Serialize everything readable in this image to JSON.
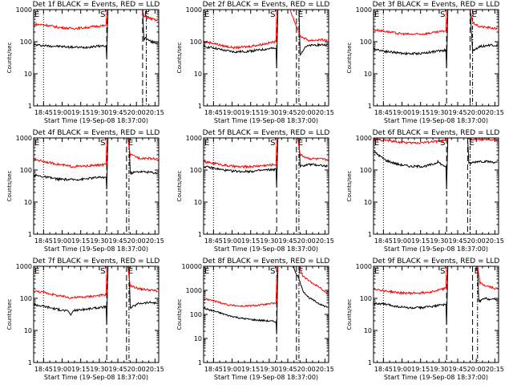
{
  "figure": {
    "xaxis_title": "Start Time (19-Sep-08 18:37:00)",
    "ylabel": "Counts/sec",
    "x_ticks": [
      "18:45",
      "19:00",
      "19:15",
      "19:30",
      "19:45",
      "20:00",
      "20:15"
    ],
    "marker_labels": {
      "eclipse_start": "E",
      "saa": "S",
      "eclipse_end": "E"
    },
    "colors": {
      "events": "#000000",
      "lld": "#ff0000"
    }
  },
  "chart_data": [
    {
      "type": "line",
      "title": "Det 1f BLACK = Events, RED = LLD",
      "x_range_min": [
        0,
        101
      ],
      "yscale": "log",
      "ylim": [
        1,
        1000
      ],
      "y_ticks": [
        "1",
        "10",
        "100",
        "1000"
      ],
      "markers_min": {
        "dotted": 8,
        "dashed1": 59,
        "dashed2": 88,
        "dotdash": 91
      },
      "series": [
        {
          "name": "Events",
          "x": [
            0,
            10,
            20,
            30,
            40,
            50,
            58.5,
            59,
            60,
            70,
            75,
            80,
            88,
            89,
            90,
            95,
            100
          ],
          "y": [
            80,
            75,
            72,
            68,
            66,
            72,
            75,
            30,
            1000,
            1000,
            1000,
            1000,
            1000,
            110,
            130,
            100,
            90
          ]
        },
        {
          "name": "LLD",
          "x": [
            0,
            10,
            20,
            30,
            40,
            50,
            58.5,
            59,
            60,
            70,
            80,
            88,
            89,
            90,
            95,
            100
          ],
          "y": [
            350,
            330,
            280,
            260,
            270,
            300,
            320,
            1000,
            1000,
            1000,
            1000,
            1000,
            600,
            600,
            520,
            450
          ]
        }
      ]
    },
    {
      "type": "line",
      "title": "Det 2f BLACK = Events, RED = LLD",
      "x_range_min": [
        0,
        101
      ],
      "yscale": "log",
      "ylim": [
        1,
        1000
      ],
      "y_ticks": [
        "1",
        "10",
        "100",
        "1000"
      ],
      "markers_min": {
        "dotted": 8,
        "dashed1": 59,
        "dashed2": 75,
        "dotdash": 77
      },
      "series": [
        {
          "name": "Events",
          "x": [
            0,
            8,
            15,
            25,
            35,
            45,
            55,
            58.5,
            59,
            60,
            70,
            77,
            78,
            82,
            90,
            100
          ],
          "y": [
            70,
            65,
            55,
            48,
            50,
            55,
            62,
            60,
            15,
            1000,
            1000,
            1000,
            40,
            70,
            80,
            80
          ]
        },
        {
          "name": "LLD",
          "x": [
            0,
            8,
            15,
            25,
            35,
            45,
            55,
            58.5,
            59,
            60,
            70,
            75,
            78,
            85,
            95,
            100
          ],
          "y": [
            100,
            90,
            75,
            65,
            70,
            80,
            95,
            100,
            1000,
            1000,
            1000,
            300,
            150,
            110,
            115,
            110
          ]
        }
      ]
    },
    {
      "type": "line",
      "title": "Det 3f BLACK = Events, RED = LLD",
      "x_range_min": [
        0,
        101
      ],
      "yscale": "log",
      "ylim": [
        1,
        1000
      ],
      "y_ticks": [
        "1",
        "10",
        "100",
        "1000"
      ],
      "markers_min": {
        "dotted": 8,
        "dashed1": 59,
        "dashed2": 78,
        "dotdash": 80
      },
      "series": [
        {
          "name": "Events",
          "x": [
            0,
            10,
            20,
            30,
            40,
            50,
            58.5,
            59,
            60,
            70,
            78,
            80,
            85,
            95,
            100
          ],
          "y": [
            60,
            50,
            45,
            42,
            44,
            50,
            55,
            15,
            1000,
            1000,
            1000,
            50,
            70,
            80,
            75
          ]
        },
        {
          "name": "LLD",
          "x": [
            0,
            10,
            20,
            30,
            40,
            50,
            58.5,
            59,
            60,
            70,
            78,
            80,
            85,
            95,
            100
          ],
          "y": [
            240,
            210,
            180,
            170,
            175,
            195,
            220,
            1000,
            1000,
            1000,
            1000,
            400,
            300,
            270,
            250
          ]
        }
      ]
    },
    {
      "type": "line",
      "title": "Det 4f BLACK = Events, RED = LLD",
      "x_range_min": [
        0,
        101
      ],
      "yscale": "log",
      "ylim": [
        1,
        1000
      ],
      "y_ticks": [
        "1",
        "10",
        "100",
        "1000"
      ],
      "markers_min": {
        "dotted": 8,
        "dashed1": 59,
        "dashed2": 75,
        "dotdash": 77
      },
      "series": [
        {
          "name": "Events",
          "x": [
            0,
            10,
            20,
            30,
            40,
            50,
            58.5,
            59,
            60,
            70,
            77,
            78,
            85,
            95,
            100
          ],
          "y": [
            70,
            60,
            52,
            50,
            52,
            58,
            60,
            25,
            1000,
            1000,
            1000,
            80,
            90,
            85,
            80
          ]
        },
        {
          "name": "LLD",
          "x": [
            0,
            10,
            20,
            30,
            40,
            50,
            58.5,
            59,
            60,
            70,
            76,
            78,
            85,
            95,
            100
          ],
          "y": [
            220,
            180,
            150,
            130,
            130,
            140,
            150,
            1000,
            1000,
            1000,
            1000,
            300,
            240,
            230,
            220
          ]
        }
      ]
    },
    {
      "type": "line",
      "title": "Det 5f BLACK = Events, RED = LLD",
      "x_range_min": [
        0,
        101
      ],
      "yscale": "log",
      "ylim": [
        1,
        1000
      ],
      "y_ticks": [
        "1",
        "10",
        "100",
        "1000"
      ],
      "markers_min": {
        "dotted": 8,
        "dashed1": 59,
        "dashed2": 75,
        "dotdash": 77
      },
      "series": [
        {
          "name": "Events",
          "x": [
            0,
            10,
            20,
            30,
            40,
            50,
            58.5,
            59,
            60,
            70,
            77,
            78,
            85,
            95,
            100
          ],
          "y": [
            130,
            110,
            95,
            90,
            92,
            100,
            105,
            30,
            1000,
            1000,
            1000,
            130,
            150,
            140,
            130
          ]
        },
        {
          "name": "LLD",
          "x": [
            0,
            10,
            20,
            30,
            40,
            50,
            58.5,
            59,
            60,
            70,
            76,
            78,
            85,
            95,
            100
          ],
          "y": [
            180,
            160,
            135,
            125,
            130,
            140,
            150,
            1000,
            1000,
            1000,
            1000,
            300,
            230,
            220,
            210
          ]
        }
      ]
    },
    {
      "type": "line",
      "title": "Det 6f BLACK = Events, RED = LLD",
      "x_range_min": [
        0,
        101
      ],
      "yscale": "log",
      "ylim": [
        1,
        1000
      ],
      "y_ticks": [
        "1",
        "10",
        "100",
        "1000"
      ],
      "markers_min": {
        "dotted": 8,
        "dashed1": 59,
        "dashed2": 76,
        "dotdash": 78
      },
      "series": [
        {
          "name": "Events",
          "x": [
            0,
            10,
            20,
            30,
            40,
            48,
            52,
            56,
            58.5,
            59,
            60,
            70,
            76,
            77,
            85,
            95,
            100
          ],
          "y": [
            380,
            200,
            150,
            130,
            130,
            150,
            180,
            140,
            130,
            25,
            1000,
            1000,
            1000,
            160,
            190,
            180,
            170
          ]
        },
        {
          "name": "LLD",
          "x": [
            0,
            10,
            20,
            30,
            40,
            50,
            58.5,
            59,
            60,
            70,
            76,
            77,
            85,
            95,
            100
          ],
          "y": [
            900,
            850,
            750,
            700,
            720,
            780,
            820,
            1000,
            1000,
            1000,
            1000,
            900,
            900,
            880,
            850
          ]
        }
      ]
    },
    {
      "type": "line",
      "title": "Det 7f BLACK = Events, RED = LLD",
      "x_range_min": [
        0,
        101
      ],
      "yscale": "log",
      "ylim": [
        1,
        1000
      ],
      "y_ticks": [
        "1",
        "10",
        "100",
        "1000"
      ],
      "markers_min": {
        "dotted": 8,
        "dashed1": 59,
        "dashed2": 75,
        "dotdash": 77
      },
      "series": [
        {
          "name": "Events",
          "x": [
            0,
            10,
            20,
            28,
            30,
            32,
            40,
            50,
            58.5,
            59,
            60,
            70,
            77,
            78,
            85,
            95,
            100
          ],
          "y": [
            65,
            55,
            45,
            40,
            30,
            42,
            45,
            50,
            55,
            15,
            1000,
            1000,
            1000,
            50,
            70,
            75,
            70
          ]
        },
        {
          "name": "LLD",
          "x": [
            0,
            10,
            20,
            30,
            40,
            50,
            58.5,
            59,
            60,
            70,
            76,
            78,
            85,
            95,
            100
          ],
          "y": [
            170,
            150,
            120,
            105,
            110,
            120,
            130,
            1000,
            1000,
            1000,
            1000,
            250,
            200,
            180,
            170
          ]
        }
      ]
    },
    {
      "type": "line",
      "title": "Det 8f BLACK = Events, RED = LLD",
      "x_range_min": [
        0,
        101
      ],
      "yscale": "log",
      "ylim": [
        1,
        10000
      ],
      "y_ticks": [
        "1",
        "10",
        "100",
        "1000",
        "10000"
      ],
      "markers_min": {
        "dotted": 8,
        "dashed1": 59,
        "dashed2": 75,
        "dotdash": 77
      },
      "series": [
        {
          "name": "Events",
          "x": [
            0,
            10,
            20,
            30,
            40,
            50,
            58.5,
            59,
            60,
            68,
            72,
            77,
            80,
            85,
            95,
            100
          ],
          "y": [
            180,
            130,
            90,
            70,
            60,
            55,
            50,
            15,
            10000,
            10000,
            10000,
            3000,
            1000,
            500,
            250,
            200
          ]
        },
        {
          "name": "LLD",
          "x": [
            0,
            10,
            20,
            30,
            40,
            50,
            58.5,
            59,
            60,
            68,
            72,
            77,
            80,
            85,
            95,
            100
          ],
          "y": [
            450,
            350,
            250,
            220,
            230,
            260,
            300,
            3000,
            10000,
            10000,
            10000,
            10000,
            4000,
            2500,
            1200,
            700
          ]
        }
      ]
    },
    {
      "type": "line",
      "title": "Det 9f BLACK = Events, RED = LLD",
      "x_range_min": [
        0,
        101
      ],
      "yscale": "log",
      "ylim": [
        1,
        1000
      ],
      "y_ticks": [
        "1",
        "10",
        "100",
        "1000"
      ],
      "markers_min": {
        "dotted": 8,
        "dashed1": 59,
        "dashed2": 80,
        "dotdash": 84
      },
      "series": [
        {
          "name": "Events",
          "x": [
            0,
            10,
            20,
            30,
            40,
            50,
            58.5,
            59,
            60,
            70,
            80,
            84,
            85,
            90,
            95,
            100
          ],
          "y": [
            70,
            65,
            55,
            50,
            52,
            58,
            65,
            15,
            1000,
            1000,
            1000,
            1000,
            80,
            100,
            95,
            90
          ]
        },
        {
          "name": "LLD",
          "x": [
            0,
            10,
            20,
            30,
            40,
            50,
            58.5,
            59,
            60,
            70,
            80,
            84,
            86,
            90,
            95,
            100
          ],
          "y": [
            200,
            170,
            150,
            145,
            150,
            170,
            210,
            1000,
            1000,
            1000,
            1000,
            1000,
            300,
            250,
            220,
            200
          ]
        }
      ]
    }
  ]
}
